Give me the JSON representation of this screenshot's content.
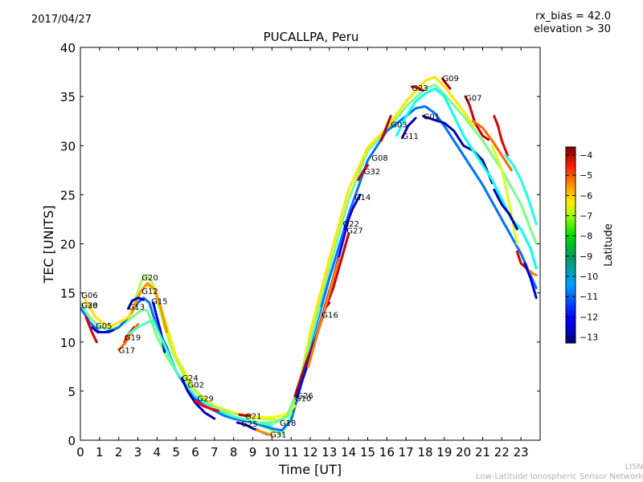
{
  "header": {
    "date": "2017/04/27",
    "rx_bias": "rx_bias = 42.0",
    "elevation": "elevation > 30"
  },
  "footer": {
    "line1": "LISN",
    "line2": "Low-Latitude Ionospheric Sensor Network"
  },
  "chart_data": {
    "type": "scatter",
    "title": "PUCALLPA, Peru",
    "xlabel": "Time [UT]",
    "ylabel": "TEC [UNITS]",
    "xlim": [
      0,
      24
    ],
    "ylim": [
      0,
      40
    ],
    "xticks": [
      "0",
      "1",
      "2",
      "3",
      "4",
      "5",
      "6",
      "7",
      "8",
      "9",
      "10",
      "11",
      "12",
      "13",
      "14",
      "15",
      "16",
      "17",
      "18",
      "19",
      "20",
      "21",
      "22",
      "23"
    ],
    "yticks": [
      "0",
      "5",
      "10",
      "15",
      "20",
      "25",
      "30",
      "35",
      "40"
    ],
    "grid": false,
    "colorbar": {
      "label": "Latitude",
      "range": [
        -13.3,
        -3.6
      ],
      "ticks": [
        "−4",
        "−5",
        "−6",
        "−7",
        "−8",
        "−9",
        "−10",
        "−11",
        "−12",
        "−13"
      ],
      "colormap": "jet"
    },
    "satellite_labels": [
      {
        "name": "G06",
        "x": 0.05,
        "y": 14.8
      },
      {
        "name": "G28",
        "x": 0.05,
        "y": 13.8
      },
      {
        "name": "G30",
        "x": 0.05,
        "y": 13.8
      },
      {
        "name": "G05",
        "x": 0.8,
        "y": 11.7
      },
      {
        "name": "G13",
        "x": 2.5,
        "y": 13.6
      },
      {
        "name": "G19",
        "x": 2.3,
        "y": 10.5
      },
      {
        "name": "G17",
        "x": 2.0,
        "y": 9.2
      },
      {
        "name": "G20",
        "x": 3.2,
        "y": 16.6
      },
      {
        "name": "G12",
        "x": 3.2,
        "y": 15.2
      },
      {
        "name": "G15",
        "x": 3.7,
        "y": 14.2
      },
      {
        "name": "G24",
        "x": 5.3,
        "y": 6.4
      },
      {
        "name": "G02",
        "x": 5.6,
        "y": 5.7
      },
      {
        "name": "G29",
        "x": 6.1,
        "y": 4.3
      },
      {
        "name": "G21",
        "x": 8.6,
        "y": 2.5
      },
      {
        "name": "G25",
        "x": 8.4,
        "y": 1.7
      },
      {
        "name": "G18",
        "x": 10.4,
        "y": 1.8
      },
      {
        "name": "G31",
        "x": 9.9,
        "y": 0.6
      },
      {
        "name": "G26",
        "x": 11.3,
        "y": 4.6
      },
      {
        "name": "G10",
        "x": 11.2,
        "y": 4.3
      },
      {
        "name": "G16",
        "x": 12.6,
        "y": 12.8
      },
      {
        "name": "G22",
        "x": 13.7,
        "y": 22.1
      },
      {
        "name": "G27",
        "x": 13.9,
        "y": 21.4
      },
      {
        "name": "G14",
        "x": 14.3,
        "y": 24.8
      },
      {
        "name": "G32",
        "x": 14.8,
        "y": 27.4
      },
      {
        "name": "G08",
        "x": 15.2,
        "y": 28.8
      },
      {
        "name": "G03",
        "x": 16.2,
        "y": 32.2
      },
      {
        "name": "G11",
        "x": 16.8,
        "y": 31.0
      },
      {
        "name": "G23",
        "x": 17.3,
        "y": 35.9
      },
      {
        "name": "G01",
        "x": 17.9,
        "y": 33.0
      },
      {
        "name": "G09",
        "x": 18.9,
        "y": 36.9
      },
      {
        "name": "G07",
        "x": 20.1,
        "y": 34.9
      }
    ],
    "series": [
      {
        "name": "early-green",
        "lat": -8.5,
        "x": [
          0,
          0.5,
          1,
          1.5,
          2,
          2.5,
          3,
          3.3,
          3.5,
          4,
          4.5,
          5,
          5.5,
          6,
          7,
          8,
          9,
          10,
          10.5,
          11,
          12,
          13,
          14,
          15,
          16,
          17,
          18,
          18.5,
          19,
          20,
          21,
          22,
          23,
          23.8
        ],
        "y": [
          14.0,
          12.5,
          11.5,
          11.3,
          11.5,
          12.2,
          13.0,
          13.3,
          13.2,
          10.5,
          8.5,
          7.0,
          5.6,
          4.5,
          3.2,
          2.3,
          1.8,
          1.0,
          0.6,
          2.5,
          10.0,
          17.5,
          24.5,
          29.5,
          31.5,
          34.0,
          35.8,
          36.2,
          35.2,
          33.0,
          30.5,
          27.5,
          24.0,
          20.0
        ]
      },
      {
        "name": "cyan-track",
        "lat": -11.0,
        "x": [
          0,
          0.5,
          1,
          1.5,
          2,
          2.5,
          3,
          3.3,
          3.6,
          4,
          4.5,
          5,
          5.5,
          6,
          6.5,
          7,
          7.5,
          8,
          9,
          10,
          10.5,
          11,
          11.5,
          12,
          13,
          14,
          15,
          16,
          17,
          17.5,
          18,
          18.5,
          19,
          20,
          21,
          22,
          23,
          23.8
        ],
        "y": [
          13.5,
          12.0,
          11.0,
          11.0,
          11.5,
          12.5,
          14.0,
          14.5,
          14.0,
          11.5,
          9.5,
          7.0,
          5.5,
          4.2,
          3.5,
          3.0,
          2.5,
          2.2,
          1.8,
          1.2,
          1.0,
          2.0,
          5.5,
          9.5,
          16.5,
          23.0,
          28.5,
          31.5,
          33.0,
          33.8,
          34.0,
          33.3,
          32.0,
          29.0,
          26.0,
          22.5,
          19.0,
          15.5
        ]
      },
      {
        "name": "yellow-track",
        "lat": -7.0,
        "x": [
          0.2,
          0.8,
          1.5,
          2.5,
          3.0,
          3.4,
          3.8,
          4.2,
          5,
          6,
          7,
          8,
          9,
          10,
          10.8,
          11.3,
          12,
          13,
          14,
          15,
          16,
          17,
          18,
          18.5,
          19,
          20,
          20.5
        ],
        "y": [
          14.5,
          12.5,
          11.5,
          12.5,
          14.5,
          15.8,
          15.5,
          13.5,
          8.5,
          5.0,
          3.5,
          2.8,
          2.4,
          2.3,
          2.6,
          4.5,
          11.0,
          18.5,
          25.5,
          29.8,
          31.8,
          34.5,
          36.6,
          37.0,
          36.0,
          33.5,
          32.0
        ]
      },
      {
        "name": "bright-green-g20",
        "lat": -8.0,
        "x": [
          2.8,
          3.2,
          3.5,
          3.8,
          4.2,
          4.8,
          5.5,
          6.5,
          7.5,
          8.5,
          9.5,
          10.5,
          11
        ],
        "y": [
          14.0,
          16.3,
          16.8,
          15.8,
          12.8,
          9.0,
          6.2,
          4.0,
          3.0,
          2.5,
          2.2,
          2.0,
          2.7
        ]
      },
      {
        "name": "g12-orange",
        "lat": -6.2,
        "x": [
          2.7,
          3.1,
          3.5,
          3.9,
          4.2,
          4.5
        ],
        "y": [
          13.0,
          15.0,
          16.0,
          15.3,
          13.5,
          11.0
        ]
      },
      {
        "name": "g05-blue",
        "lat": -12.5,
        "x": [
          0.6,
          0.9,
          1.3,
          1.7
        ],
        "y": [
          11.5,
          11.0,
          11.0,
          11.2
        ]
      },
      {
        "name": "g06-red",
        "lat": -4.4,
        "x": [
          0.3,
          0.6,
          0.85
        ],
        "y": [
          12.5,
          11.0,
          10.0
        ]
      },
      {
        "name": "g13-blue",
        "lat": -12.6,
        "x": [
          2.5,
          2.7,
          3.0,
          3.3
        ],
        "y": [
          13.4,
          14.2,
          14.5,
          14.3
        ]
      },
      {
        "name": "g15-blue",
        "lat": -12.3,
        "x": [
          3.8,
          4.0,
          4.2,
          4.4
        ],
        "y": [
          14.0,
          12.5,
          11.0,
          9.0
        ]
      },
      {
        "name": "g19-red",
        "lat": -4.6,
        "x": [
          2.3,
          2.5,
          2.8
        ],
        "y": [
          10.0,
          10.8,
          11.5
        ]
      },
      {
        "name": "g17-orange",
        "lat": -5.8,
        "x": [
          2.0,
          2.3,
          2.6,
          3.0
        ],
        "y": [
          9.2,
          9.8,
          10.8,
          11.8
        ]
      },
      {
        "name": "g19-green",
        "lat": -9.0,
        "x": [
          2.5,
          3.0,
          3.5,
          3.8,
          4.2,
          5.0,
          6.0,
          7.0,
          8.0,
          9.0,
          10.0
        ],
        "y": [
          10.8,
          11.5,
          12.0,
          12.2,
          10.5,
          7.0,
          4.5,
          3.2,
          2.4,
          1.9,
          1.5
        ]
      },
      {
        "name": "g13-blue-dip",
        "lat": -12.8,
        "x": [
          5.3,
          5.6,
          6.0,
          6.5,
          7.0
        ],
        "y": [
          6.3,
          5.0,
          3.8,
          2.8,
          2.2
        ]
      },
      {
        "name": "g29-red",
        "lat": -4.8,
        "x": [
          6.0,
          6.4,
          6.8,
          7.2
        ],
        "y": [
          4.0,
          3.5,
          3.2,
          3.0
        ]
      },
      {
        "name": "g21-red",
        "lat": -4.2,
        "x": [
          8.3,
          8.6,
          8.9
        ],
        "y": [
          2.6,
          2.5,
          2.5
        ]
      },
      {
        "name": "g21-yellow",
        "lat": -7.3,
        "x": [
          8.9,
          9.5,
          10.2,
          10.8,
          11.2
        ],
        "y": [
          2.4,
          2.3,
          2.4,
          2.7,
          3.5
        ]
      },
      {
        "name": "g25-blue",
        "lat": -12.7,
        "x": [
          8.2,
          8.6,
          9.0,
          9.4,
          9.8
        ],
        "y": [
          1.8,
          1.6,
          1.2,
          0.9,
          0.6
        ]
      },
      {
        "name": "g31-orange",
        "lat": -6.3,
        "x": [
          9.2,
          9.6,
          10.0
        ],
        "y": [
          1.0,
          0.8,
          0.5
        ]
      },
      {
        "name": "g18-green",
        "lat": -8.7,
        "x": [
          9.5,
          10.2,
          10.8,
          11.2,
          11.8,
          12.5
        ],
        "y": [
          1.8,
          1.8,
          2.5,
          4.5,
          8.5,
          13.5
        ]
      },
      {
        "name": "g10-red",
        "lat": -4.3,
        "x": [
          11.2,
          11.8,
          12.4,
          12.8,
          13.2,
          14.0
        ],
        "y": [
          4.5,
          8.0,
          11.0,
          13.5,
          15.5,
          21.0
        ]
      },
      {
        "name": "g16-red",
        "lat": -4.5,
        "x": [
          12.6,
          12.8,
          13.0
        ],
        "y": [
          12.5,
          13.5,
          14.0
        ]
      },
      {
        "name": "g26-blue",
        "lat": -12.2,
        "x": [
          11.3,
          12.0,
          12.6,
          13.2,
          14.0
        ],
        "y": [
          4.4,
          8.5,
          12.5,
          16.5,
          22.5
        ]
      },
      {
        "name": "g16-orange",
        "lat": -6.0,
        "x": [
          11.9,
          12.4,
          13.0,
          13.5
        ],
        "y": [
          7.5,
          11.0,
          15.0,
          18.5
        ]
      },
      {
        "name": "g27-blue",
        "lat": -12.5,
        "x": [
          13.8,
          14.2,
          14.6
        ],
        "y": [
          21.5,
          23.5,
          25.0
        ]
      },
      {
        "name": "g22-red",
        "lat": -4.4,
        "x": [
          14.5,
          14.8,
          15.0
        ],
        "y": [
          26.5,
          27.5,
          28.0
        ]
      },
      {
        "name": "g03-red",
        "lat": -4.2,
        "x": [
          15.7,
          16.0,
          16.2
        ],
        "y": [
          30.5,
          32.0,
          33.0
        ]
      },
      {
        "name": "g11-blue",
        "lat": -12.7,
        "x": [
          16.8,
          17.1,
          17.5
        ],
        "y": [
          30.8,
          32.0,
          32.8
        ]
      },
      {
        "name": "g01-blue",
        "lat": -12.9,
        "x": [
          17.9,
          18.5,
          19.0,
          19.5,
          20.0,
          20.5,
          21.0,
          21.5
        ],
        "y": [
          33.0,
          32.6,
          32.3,
          31.5,
          30.0,
          29.5,
          28.5,
          26.2
        ]
      },
      {
        "name": "g23-red",
        "lat": -4.4,
        "x": [
          17.3,
          17.6,
          17.9
        ],
        "y": [
          36.0,
          35.9,
          35.6
        ]
      },
      {
        "name": "g09-red",
        "lat": -4.1,
        "x": [
          18.9,
          19.1,
          19.3
        ],
        "y": [
          36.8,
          36.3,
          35.8
        ]
      },
      {
        "name": "dark-green-top",
        "lat": -9.6,
        "x": [
          16.5,
          17.0,
          17.5,
          18.0,
          18.5,
          19.0,
          19.5,
          20.0,
          20.5,
          21.0,
          21.5,
          22.0,
          22.5,
          23.0,
          23.5,
          23.8
        ],
        "y": [
          31.0,
          33.0,
          34.5,
          35.3,
          35.8,
          35.0,
          33.0,
          31.0,
          29.5,
          28.0,
          26.5,
          24.5,
          22.5,
          21.5,
          19.5,
          17.5
        ]
      },
      {
        "name": "g07-red",
        "lat": -4.3,
        "x": [
          20.1,
          20.3,
          20.6,
          21.0,
          21.3
        ],
        "y": [
          35.0,
          34.2,
          32.3,
          31.0,
          30.6
        ]
      },
      {
        "name": "g07-orange",
        "lat": -5.8,
        "x": [
          20.5,
          21.0,
          21.5,
          22.0,
          22.5
        ],
        "y": [
          32.5,
          31.8,
          30.5,
          29.0,
          27.5
        ]
      },
      {
        "name": "red-mid",
        "lat": -4.5,
        "x": [
          21.6,
          21.8,
          22.0,
          22.3
        ],
        "y": [
          33.0,
          32.0,
          30.5,
          29.0
        ]
      },
      {
        "name": "green-right",
        "lat": -9.4,
        "x": [
          22.2,
          22.6,
          23.0,
          23.4,
          23.8
        ],
        "y": [
          29.0,
          28.0,
          26.5,
          24.5,
          22.0
        ]
      },
      {
        "name": "lime-right",
        "lat": -7.6,
        "x": [
          21.5,
          22.0,
          22.4,
          22.8
        ],
        "y": [
          30.0,
          27.5,
          24.0,
          20.0
        ]
      },
      {
        "name": "blue-right",
        "lat": -12.8,
        "x": [
          21.6,
          22.0,
          22.4,
          22.8
        ],
        "y": [
          25.5,
          24.0,
          23.0,
          21.5
        ]
      },
      {
        "name": "red-end",
        "lat": -4.4,
        "x": [
          22.8,
          23.0,
          23.3
        ],
        "y": [
          19.2,
          18.0,
          17.5
        ]
      },
      {
        "name": "orange-end",
        "lat": -6.0,
        "x": [
          23.3,
          23.6,
          23.8
        ],
        "y": [
          17.5,
          17.0,
          16.8
        ]
      },
      {
        "name": "blue-end",
        "lat": -12.4,
        "x": [
          23.2,
          23.5,
          23.8
        ],
        "y": [
          18.0,
          16.5,
          14.5
        ]
      }
    ]
  }
}
